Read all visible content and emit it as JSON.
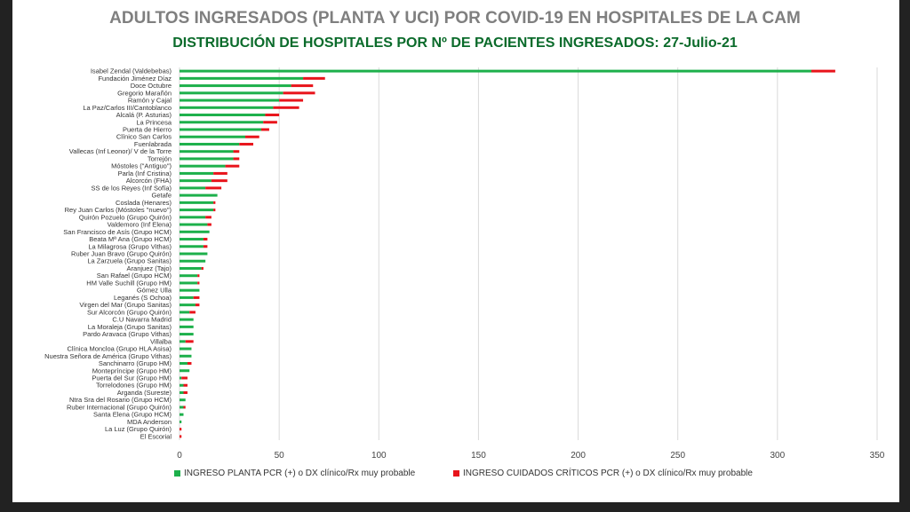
{
  "chart_data": {
    "type": "bar",
    "orientation": "horizontal",
    "stacked": true,
    "title": "ADULTOS INGRESADOS (PLANTA Y UCI) POR COVID-19 EN HOSPITALES DE LA CAM",
    "subtitle": "DISTRIBUCIÓN DE HOSPITALES POR Nº DE PACIENTES INGRESADOS: 27-Julio-21",
    "xlim": [
      0,
      350
    ],
    "xticks": [
      0,
      50,
      100,
      150,
      200,
      250,
      300,
      350
    ],
    "grid": true,
    "legend_position": "bottom",
    "categories": [
      "Isabel Zendal (Valdebebas)",
      "Fundación Jiménez Díaz",
      "Doce Octubre",
      "Gregorio Marañón",
      "Ramón y Cajal",
      "La Paz/Carlos III/Cantoblanco",
      "Alcalá (P. Asturias)",
      "La Princesa",
      "Puerta de Hierro",
      "Clínico San Carlos",
      "Fuenlabrada",
      "Vallecas (Inf Leonor)/ V de la Torre",
      "Torrejón",
      "Móstoles (\"Antiguo\")",
      "Parla (Inf Cristina)",
      "Alcorcón (FHA)",
      "SS de los Reyes (Inf Sofía)",
      "Getafe",
      "Coslada (Henares)",
      "Rey Juan Carlos (Móstoles \"nuevo\")",
      "Quirón Pozuelo (Grupo Quirón)",
      "Valdemoro (Inf Elena)",
      "San Francisco de Asís (Grupo HCM)",
      "Beata Mª Ana (Grupo HCM)",
      "La Milagrosa (Grupo Vithas)",
      "Ruber Juan Bravo (Grupo Quirón)",
      "La Zarzuela (Grupo Sanitas)",
      "Aranjuez (Tajo)",
      "San Rafael (Grupo HCM)",
      "HM Valle Suchill (Grupo HM)",
      "Gómez Ulla",
      "Leganés (S Ochoa)",
      "Virgen del Mar (Grupo Sanitas)",
      "Sur Alcorcón (Grupo Quirón)",
      "C.U Navarra Madrid",
      "La Moraleja (Grupo Sanitas)",
      "Pardo Aravaca (Grupo Vithas)",
      "Villalba",
      "Clínica Moncloa (Grupo HLA Asisa)",
      "Nuestra Señora de América (Grupo Vithas)",
      "Sanchinarro (Grupo HM)",
      "Montepríncipe (Grupo HM)",
      "Puerta del Sur (Grupo HM)",
      "Torrelodones (Grupo HM)",
      "Arganda (Sureste)",
      "Ntra Sra del Rosario (Grupo HCM)",
      "Ruber Internacional (Grupo Quirón)",
      "Santa Elena (Grupo HCM)",
      "MDA Anderson",
      "La Luz (Grupo Quirón)",
      "El Escorial"
    ],
    "series": [
      {
        "name": "INGRESO PLANTA PCR (+) o DX clínico/Rx muy probable",
        "color": "#1db04b",
        "values": [
          317,
          62,
          56,
          52,
          50,
          47,
          43,
          42,
          41,
          33,
          30,
          27,
          27,
          23,
          17,
          16,
          13,
          19,
          17,
          17,
          13,
          14,
          15,
          12,
          12,
          14,
          13,
          11,
          9,
          9,
          10,
          7,
          8,
          5,
          7,
          7,
          7,
          3,
          6,
          6,
          4,
          5,
          1,
          2,
          2,
          3,
          2,
          2,
          1,
          0,
          0
        ]
      },
      {
        "name": "INGRESO CUIDADOS CRÍTICOS PCR (+) o DX clínico/Rx muy probable",
        "color": "#e8141b",
        "values": [
          12,
          11,
          11,
          16,
          12,
          13,
          7,
          7,
          4,
          7,
          7,
          3,
          3,
          7,
          7,
          8,
          8,
          0,
          1,
          1,
          3,
          2,
          0,
          2,
          2,
          0,
          0,
          1,
          1,
          1,
          0,
          3,
          2,
          3,
          0,
          0,
          0,
          4,
          0,
          0,
          2,
          0,
          3,
          2,
          2,
          0,
          1,
          0,
          0,
          1,
          1
        ]
      }
    ]
  }
}
